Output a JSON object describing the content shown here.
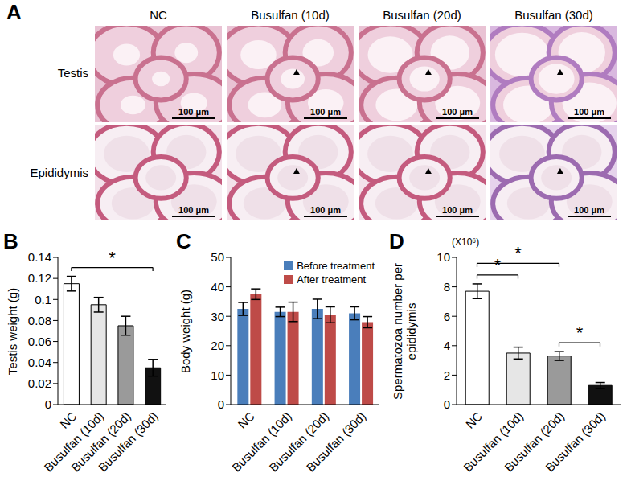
{
  "images": {
    "panel_label": "A",
    "columns": [
      "NC",
      "Busulfan (10d)",
      "Busulfan (20d)",
      "Busulfan (30d)"
    ],
    "rows": [
      "Testis",
      "Epididymis"
    ],
    "scale_bar": "100 μm"
  },
  "chart_data": [
    {
      "panel_label": "B",
      "type": "bar",
      "ylabel": "Testis weight (g)",
      "categories": [
        "NC",
        "Busulfan (10d)",
        "Busulfan (20d)",
        "Busulfan (30d)"
      ],
      "values": [
        0.115,
        0.095,
        0.075,
        0.035
      ],
      "errors": [
        0.007,
        0.007,
        0.009,
        0.008
      ],
      "colors": [
        "#ffffff",
        "#e6e6e6",
        "#9a9a9a",
        "#111111"
      ],
      "ylim": [
        0,
        0.14
      ],
      "yticks": [
        0,
        0.02,
        0.04,
        0.06,
        0.08,
        0.1,
        0.12,
        0.14
      ],
      "grid": false,
      "annotations": [
        {
          "text": "*",
          "from": "NC",
          "to": "Busulfan (30d)"
        }
      ]
    },
    {
      "panel_label": "C",
      "type": "bar",
      "ylabel": "Body weight (g)",
      "categories": [
        "NC",
        "Busulfan (10d)",
        "Busulfan (20d)",
        "Busulfan (30d)"
      ],
      "series": [
        {
          "name": "Before treatment",
          "color": "#4a7ebb",
          "values": [
            32.5,
            31.5,
            32.5,
            31
          ],
          "errors": [
            2.2,
            1.6,
            3.3,
            2.2
          ]
        },
        {
          "name": "After treatment",
          "color": "#be4b48",
          "values": [
            37.5,
            31.5,
            30.5,
            28
          ],
          "errors": [
            1.8,
            3.3,
            2.7,
            1.9
          ]
        }
      ],
      "ylim": [
        0,
        50
      ],
      "yticks": [
        0,
        10,
        20,
        30,
        40,
        50
      ],
      "grid": false,
      "legend": "upper right"
    },
    {
      "panel_label": "D",
      "type": "bar",
      "ylabel": "Spermatozoa number per epididymis",
      "yunit": "(X10⁶)",
      "categories": [
        "NC",
        "Busulfan (10d)",
        "Busulfan (20d)",
        "Busulfan (30d)"
      ],
      "values": [
        7.7,
        3.5,
        3.3,
        1.3
      ],
      "errors": [
        0.5,
        0.4,
        0.3,
        0.2
      ],
      "colors": [
        "#ffffff",
        "#e6e6e6",
        "#9a9a9a",
        "#111111"
      ],
      "ylim": [
        0,
        10
      ],
      "yticks": [
        0,
        2,
        4,
        6,
        8,
        10
      ],
      "grid": false,
      "annotations": [
        {
          "text": "*",
          "from": "NC",
          "to": "Busulfan (10d)"
        },
        {
          "text": "*",
          "from": "NC",
          "to": "Busulfan (20d)"
        },
        {
          "text": "*",
          "from": "Busulfan (20d)",
          "to": "Busulfan (30d)"
        }
      ]
    }
  ]
}
